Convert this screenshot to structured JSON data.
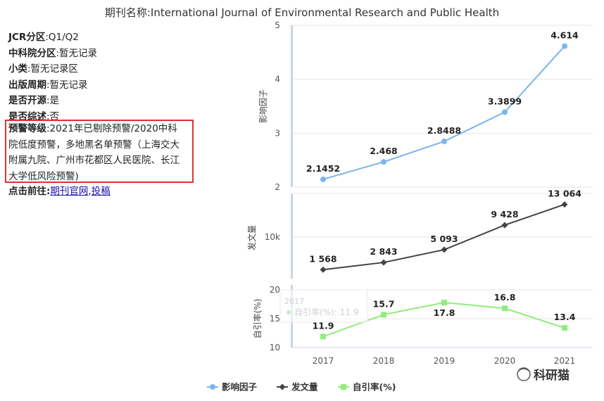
{
  "page_title": "期刊名称:International Journal of Environmental Research and Public Health",
  "info": [
    {
      "key": "JCR分区",
      "value": ":Q1/Q2"
    },
    {
      "key": "中科院分区",
      "value": ":暂无记录"
    },
    {
      "key": "小类",
      "value": ":暂无记录区"
    },
    {
      "key": "出版周期",
      "value": ":暂无记录"
    },
    {
      "key": "是否开源",
      "value": ":是"
    },
    {
      "key": "是否综述",
      "value": ":否"
    }
  ],
  "warning": {
    "key": "预警等级",
    "value": ":2021年已剔除预警/2020中科院低度预警，多地黑名单预警（上海交大附属九院、广州市花都区人民医院、长江大学低风险预警)"
  },
  "links": {
    "label": "点击前往:",
    "official": "期刊官网",
    "separator": ",",
    "submit": "投稿"
  },
  "tooltip": {
    "year": "2017",
    "text": "自引率(%): 11.9"
  },
  "watermark": "科研猫",
  "chart_data": {
    "type": "line",
    "categories": [
      "2017",
      "2018",
      "2019",
      "2020",
      "2021"
    ],
    "series": [
      {
        "name": "影响因子",
        "color": "#7cb5ec",
        "marker": "circle",
        "values": [
          2.1452,
          2.468,
          2.8488,
          3.3899,
          4.614
        ],
        "labels": [
          "2.1452",
          "2.468",
          "2.8488",
          "3.3899",
          "4.614"
        ],
        "ylabel": "影响因子",
        "ylim": [
          2,
          5
        ],
        "yticks": [
          "2",
          "3",
          "4",
          "5"
        ]
      },
      {
        "name": "发文量",
        "color": "#434348",
        "marker": "diamond",
        "values": [
          1568,
          2843,
          5093,
          9428,
          13064
        ],
        "labels": [
          "1 568",
          "2 843",
          "5 093",
          "9 428",
          "13 064"
        ],
        "ylabel": "发文量",
        "yticks": [
          "10k"
        ]
      },
      {
        "name": "自引率(%)",
        "color": "#90ed7d",
        "marker": "square",
        "values": [
          11.9,
          15.7,
          17.8,
          16.8,
          13.4
        ],
        "labels": [
          "11.9",
          "15.7",
          "17.8",
          "16.8",
          "13.4"
        ],
        "ylabel": "自引率(%)",
        "ylim": [
          10,
          20
        ],
        "yticks": [
          "10",
          "15",
          "20"
        ]
      }
    ],
    "legend": "bottom"
  }
}
